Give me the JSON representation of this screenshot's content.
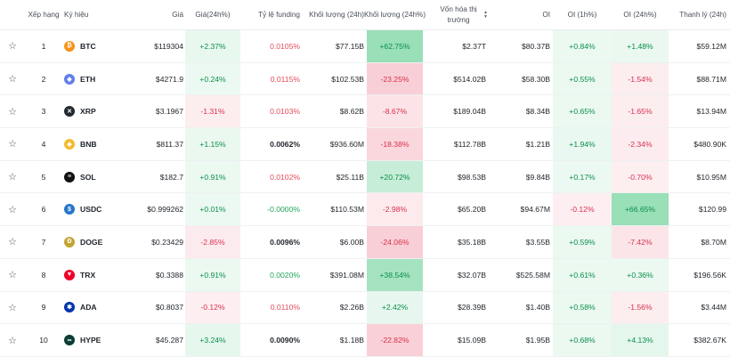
{
  "header": {
    "rank": "Xếp hạng",
    "symbol": "Ký hiệu",
    "price": "Giá",
    "change24h": "Giá(24h%)",
    "funding": "Tỷ lệ funding",
    "volume": "Khối lượng (24h)",
    "volume_change": "Khối lượng (24h%)",
    "market_cap": "Vốn hóa thị trường",
    "oi": "OI",
    "oi_1h": "OI (1h%)",
    "oi_24h": "OI (24h%)",
    "liquidation": "Thanh lý (24h)",
    "sort_up": "▲",
    "sort_down": "▼"
  },
  "colors": {
    "pos_text": "#0b8f4a",
    "neg_text": "#d9304e"
  },
  "rows": [
    {
      "rank": "1",
      "symbol": "BTC",
      "icon": "bitcoin-icon",
      "icon_glyph": "₿",
      "icon_color": "#f7931a",
      "price": "$119304",
      "change": "+2.37%",
      "funding": "0.0105%",
      "funding_kind": "neg",
      "volume": "$77.15B",
      "volume_change": "+62.75%",
      "mcap": "$2.37T",
      "oi": "$80.37B",
      "oi_1h": "+0.84%",
      "oi_24h": "+1.48%",
      "liq": "$59.12M"
    },
    {
      "rank": "2",
      "symbol": "ETH",
      "icon": "ethereum-icon",
      "icon_glyph": "◆",
      "icon_color": "#627eea",
      "price": "$4271.9",
      "change": "+0.24%",
      "funding": "0.0115%",
      "funding_kind": "neg",
      "volume": "$102.53B",
      "volume_change": "-23.25%",
      "mcap": "$514.02B",
      "oi": "$58.30B",
      "oi_1h": "+0.55%",
      "oi_24h": "-1.54%",
      "liq": "$88.71M"
    },
    {
      "rank": "3",
      "symbol": "XRP",
      "icon": "xrp-icon",
      "icon_glyph": "✕",
      "icon_color": "#23292f",
      "price": "$3.1967",
      "change": "-1.31%",
      "funding": "0.0103%",
      "funding_kind": "neg",
      "volume": "$8.62B",
      "volume_change": "-8.67%",
      "mcap": "$189.04B",
      "oi": "$8.34B",
      "oi_1h": "+0.65%",
      "oi_24h": "-1.65%",
      "liq": "$13.94M"
    },
    {
      "rank": "4",
      "symbol": "BNB",
      "icon": "bnb-icon",
      "icon_glyph": "◈",
      "icon_color": "#f3ba2f",
      "price": "$811.37",
      "change": "+1.15%",
      "funding": "0.0062%",
      "funding_kind": "neu",
      "volume": "$936.60M",
      "volume_change": "-18.38%",
      "mcap": "$112.78B",
      "oi": "$1.21B",
      "oi_1h": "+1.94%",
      "oi_24h": "-2.34%",
      "liq": "$480.90K"
    },
    {
      "rank": "5",
      "symbol": "SOL",
      "icon": "solana-icon",
      "icon_glyph": "≡",
      "icon_color": "#111111",
      "price": "$182.7",
      "change": "+0.91%",
      "funding": "0.0102%",
      "funding_kind": "neg",
      "volume": "$25.11B",
      "volume_change": "+20.72%",
      "mcap": "$98.53B",
      "oi": "$9.84B",
      "oi_1h": "+0.17%",
      "oi_24h": "-0.70%",
      "liq": "$10.95M"
    },
    {
      "rank": "6",
      "symbol": "USDC",
      "icon": "usdc-icon",
      "icon_glyph": "$",
      "icon_color": "#2775ca",
      "price": "$0.999262",
      "change": "+0.01%",
      "funding": "-0.0000%",
      "funding_kind": "pos",
      "volume": "$110.53M",
      "volume_change": "-2.98%",
      "mcap": "$65.20B",
      "oi": "$94.67M",
      "oi_1h": "-0.12%",
      "oi_24h": "+66.65%",
      "liq": "$120.99"
    },
    {
      "rank": "7",
      "symbol": "DOGE",
      "icon": "dogecoin-icon",
      "icon_glyph": "Ð",
      "icon_color": "#c2a633",
      "price": "$0.23429",
      "change": "-2.85%",
      "funding": "0.0096%",
      "funding_kind": "neu",
      "volume": "$6.00B",
      "volume_change": "-24.06%",
      "mcap": "$35.18B",
      "oi": "$3.55B",
      "oi_1h": "+0.59%",
      "oi_24h": "-7.42%",
      "liq": "$8.70M"
    },
    {
      "rank": "8",
      "symbol": "TRX",
      "icon": "tron-icon",
      "icon_glyph": "▼",
      "icon_color": "#ef0027",
      "price": "$0.3388",
      "change": "+0.91%",
      "funding": "0.0020%",
      "funding_kind": "pos",
      "volume": "$391.08M",
      "volume_change": "+38.54%",
      "mcap": "$32.07B",
      "oi": "$525.58M",
      "oi_1h": "+0.61%",
      "oi_24h": "+0.36%",
      "liq": "$196.56K"
    },
    {
      "rank": "9",
      "symbol": "ADA",
      "icon": "cardano-icon",
      "icon_glyph": "✱",
      "icon_color": "#0033ad",
      "price": "$0.8037",
      "change": "-0.12%",
      "funding": "0.0110%",
      "funding_kind": "neg",
      "volume": "$2.26B",
      "volume_change": "+2.42%",
      "mcap": "$28.39B",
      "oi": "$1.40B",
      "oi_1h": "+0.58%",
      "oi_24h": "-1.56%",
      "liq": "$3.44M"
    },
    {
      "rank": "10",
      "symbol": "HYPE",
      "icon": "hyperliquid-icon",
      "icon_glyph": "∞",
      "icon_color": "#0a3d34",
      "price": "$45.287",
      "change": "+3.24%",
      "funding": "0.0090%",
      "funding_kind": "neu",
      "volume": "$1.18B",
      "volume_change": "-22.82%",
      "mcap": "$15.09B",
      "oi": "$1.95B",
      "oi_1h": "+0.68%",
      "oi_24h": "+4.13%",
      "liq": "$382.67K"
    }
  ]
}
